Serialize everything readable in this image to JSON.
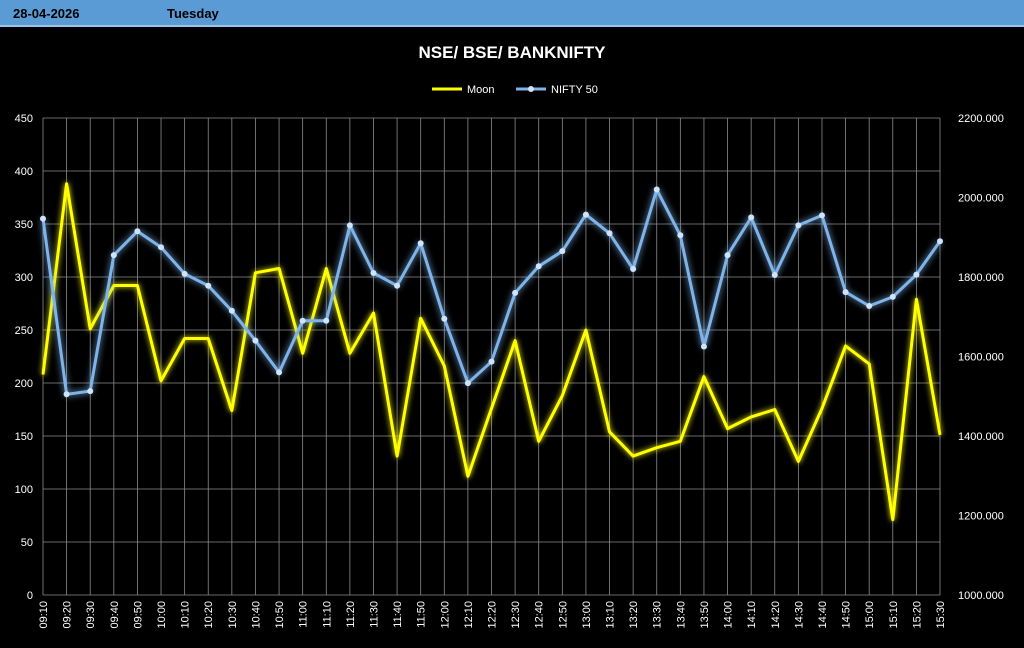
{
  "header": {
    "date": "28-04-2026",
    "day": "Tuesday"
  },
  "chart_data": {
    "type": "line",
    "title": "NSE/ BSE/ BANKNIFTY",
    "legend_position": "top-center",
    "grid": true,
    "categories": [
      "09:10",
      "09:20",
      "09:30",
      "09:40",
      "09:50",
      "10:00",
      "10:10",
      "10:20",
      "10:30",
      "10:40",
      "10:50",
      "11:00",
      "11:10",
      "11:20",
      "11:30",
      "11:40",
      "11:50",
      "12:00",
      "12:10",
      "12:20",
      "12:30",
      "12:40",
      "12:50",
      "13:00",
      "13:10",
      "13:20",
      "13:30",
      "13:40",
      "13:50",
      "14:00",
      "14:10",
      "14:20",
      "14:30",
      "14:40",
      "14:50",
      "15:00",
      "15:10",
      "15:20",
      "15:30"
    ],
    "y_left": {
      "min": 0,
      "max": 450,
      "ticks": [
        "0",
        "50",
        "100",
        "150",
        "200",
        "250",
        "300",
        "350",
        "400",
        "450"
      ]
    },
    "y_right": {
      "min": 1000,
      "max": 2200,
      "ticks": [
        "1000.000",
        "1200.000",
        "1400.000",
        "1600.000",
        "1800.000",
        "2000.000",
        "2200.000"
      ]
    },
    "series": [
      {
        "name": "Moon",
        "axis": "left",
        "color": "#ffff00",
        "values": [
          208,
          388,
          251,
          292,
          292,
          202,
          242,
          242,
          174,
          304,
          308,
          228,
          308,
          228,
          266,
          131,
          261,
          216,
          112,
          176,
          240,
          145,
          188,
          250,
          154,
          131,
          139,
          145,
          206,
          157,
          168,
          175,
          126,
          176,
          235,
          218,
          71,
          279,
          151
        ]
      },
      {
        "name": "NIFTY 50",
        "axis": "right",
        "color": "#7fb4ea",
        "marker": "circle",
        "values": [
          1947,
          1505,
          1513,
          1855,
          1915,
          1875,
          1808,
          1778,
          1715,
          1640,
          1560,
          1690,
          1690,
          1930,
          1810,
          1778,
          1885,
          1695,
          1533,
          1587,
          1760,
          1827,
          1865,
          1957,
          1910,
          1820,
          2020,
          1905,
          1625,
          1855,
          1950,
          1805,
          1930,
          1955,
          1762,
          1727,
          1750,
          1806,
          1890
        ]
      }
    ]
  }
}
